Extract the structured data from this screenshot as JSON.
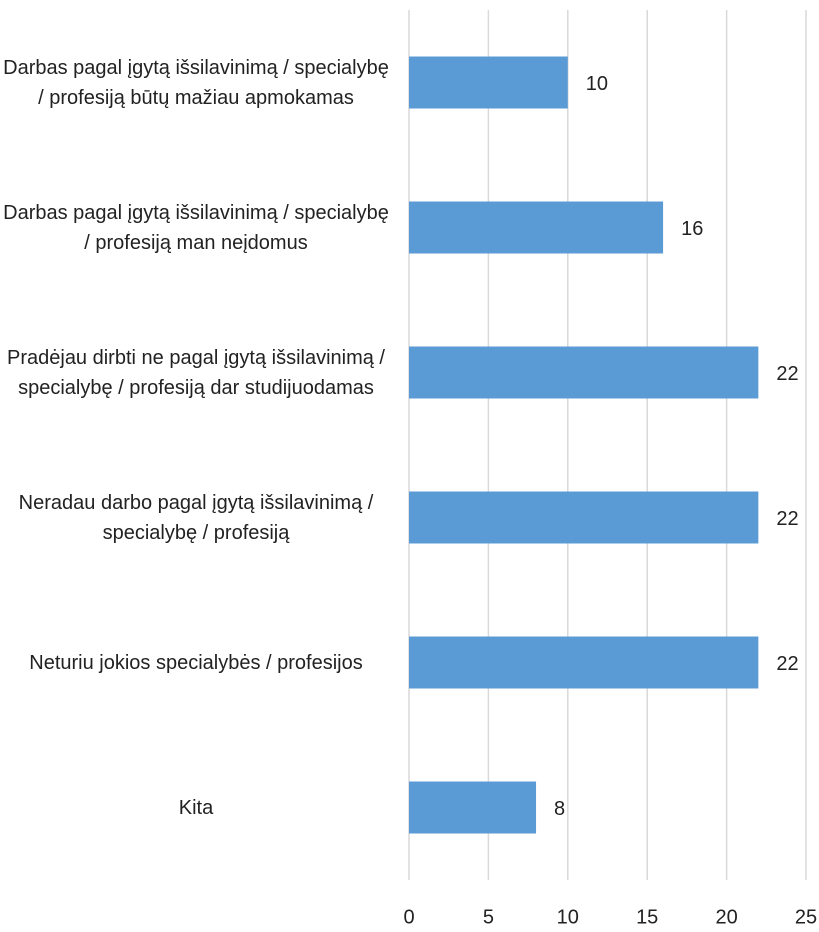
{
  "chart_data": {
    "type": "bar",
    "orientation": "horizontal",
    "categories": [
      "Darbas pagal įgytą išsilavinimą / specialybę / profesiją būtų mažiau apmokamas",
      "Darbas pagal įgytą išsilavinimą / specialybę / profesiją man neįdomus",
      "Pradėjau dirbti ne pagal įgytą išsilavinimą / specialybę / profesiją dar studijuodamas",
      "Neradau darbo pagal įgytą išsilavinimą / specialybę / profesiją",
      "Neturiu jokios specialybės / profesijos",
      "Kita"
    ],
    "values": [
      10,
      16,
      22,
      22,
      22,
      8
    ],
    "color": "#5b9bd5",
    "xlim": [
      0,
      25
    ],
    "xticks": [
      0,
      5,
      10,
      15,
      20,
      25
    ],
    "grid": true
  }
}
